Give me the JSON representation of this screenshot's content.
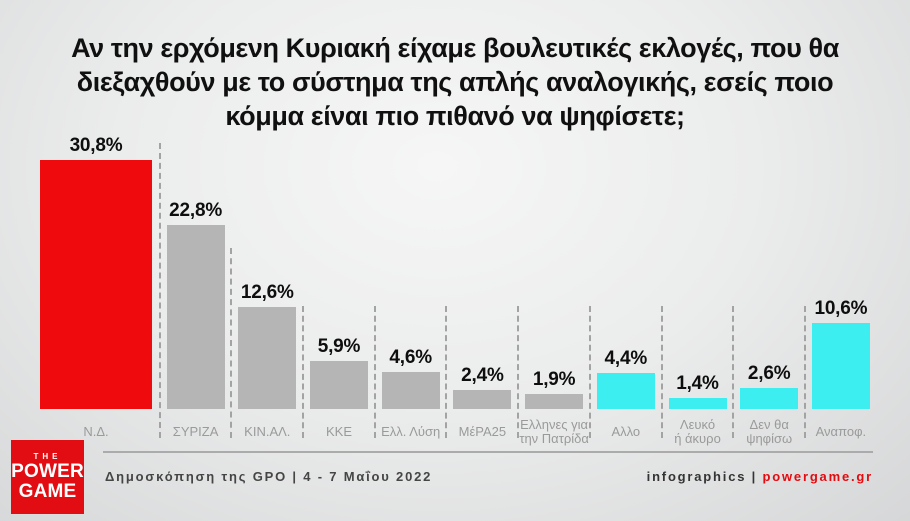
{
  "title_lines": [
    "Αν την ερχόμενη Κυριακή είχαμε βουλευτικές εκλογές, που θα",
    "διεξαχθούν με το σύστημα της απλής αναλογικής, εσείς ποιο",
    "κόμμα είναι πιο πιθανό να ψηφίσετε;"
  ],
  "chart_data": {
    "type": "bar",
    "orientation": "vertical",
    "title": "Αν την ερχόμενη Κυριακή είχαμε βουλευτικές εκλογές, που θα διεξαχθούν με το σύστημα της απλής αναλογικής, εσείς ποιο κόμμα είναι πιο πιθανό να ψηφίσετε;",
    "categories": [
      "Ν.Δ.",
      "ΣΥΡΙΖΑ",
      "ΚΙΝ.ΑΛ.",
      "ΚΚΕ",
      "Ελλ. Λύση",
      "ΜέΡΑ25",
      "Ελληνες για την Πατρίδα",
      "Αλλο",
      "Λευκό ή άκυρο",
      "Δεν θα ψηφίσω",
      "Αναποφ."
    ],
    "category_lines": [
      [
        "Ν.Δ."
      ],
      [
        "ΣΥΡΙΖΑ"
      ],
      [
        "ΚΙΝ.ΑΛ."
      ],
      [
        "ΚΚΕ"
      ],
      [
        "Ελλ. Λύση"
      ],
      [
        "ΜέΡΑ25"
      ],
      [
        "Ελληνες για",
        "την Πατρίδα"
      ],
      [
        "Αλλο"
      ],
      [
        "Λευκό",
        "ή άκυρο"
      ],
      [
        "Δεν θα",
        "ψηφίσω"
      ],
      [
        "Αναποφ."
      ]
    ],
    "values": [
      30.8,
      22.8,
      12.6,
      5.9,
      4.6,
      2.4,
      1.9,
      4.4,
      1.4,
      2.6,
      10.6
    ],
    "value_labels": [
      "30,8%",
      "22,8%",
      "12,6%",
      "5,9%",
      "4,6%",
      "2,4%",
      "1,9%",
      "4,4%",
      "1,4%",
      "2,6%",
      "10,6%"
    ],
    "bar_color_roles": [
      "red",
      "gray",
      "gray",
      "gray",
      "gray",
      "gray",
      "gray",
      "cyan",
      "cyan",
      "cyan",
      "cyan"
    ],
    "ylim": [
      0,
      32
    ],
    "grid": false,
    "legend": "none"
  },
  "colors": {
    "red": "#ee0a0d",
    "gray": "#b5b5b5",
    "cyan": "#3deef0",
    "label_gray": "#9a9a9a",
    "separator": "#a3a3a3",
    "brand_red": "#e30b10"
  },
  "footer": {
    "source": "Δημοσκόπηση της GPO | 4 - 7 Μαΐου 2022",
    "credit_prefix": "infographics | ",
    "credit_brand": "powergame.gr"
  },
  "logo": {
    "top": "THE",
    "middle": "POWER",
    "bottom": "GAME"
  }
}
